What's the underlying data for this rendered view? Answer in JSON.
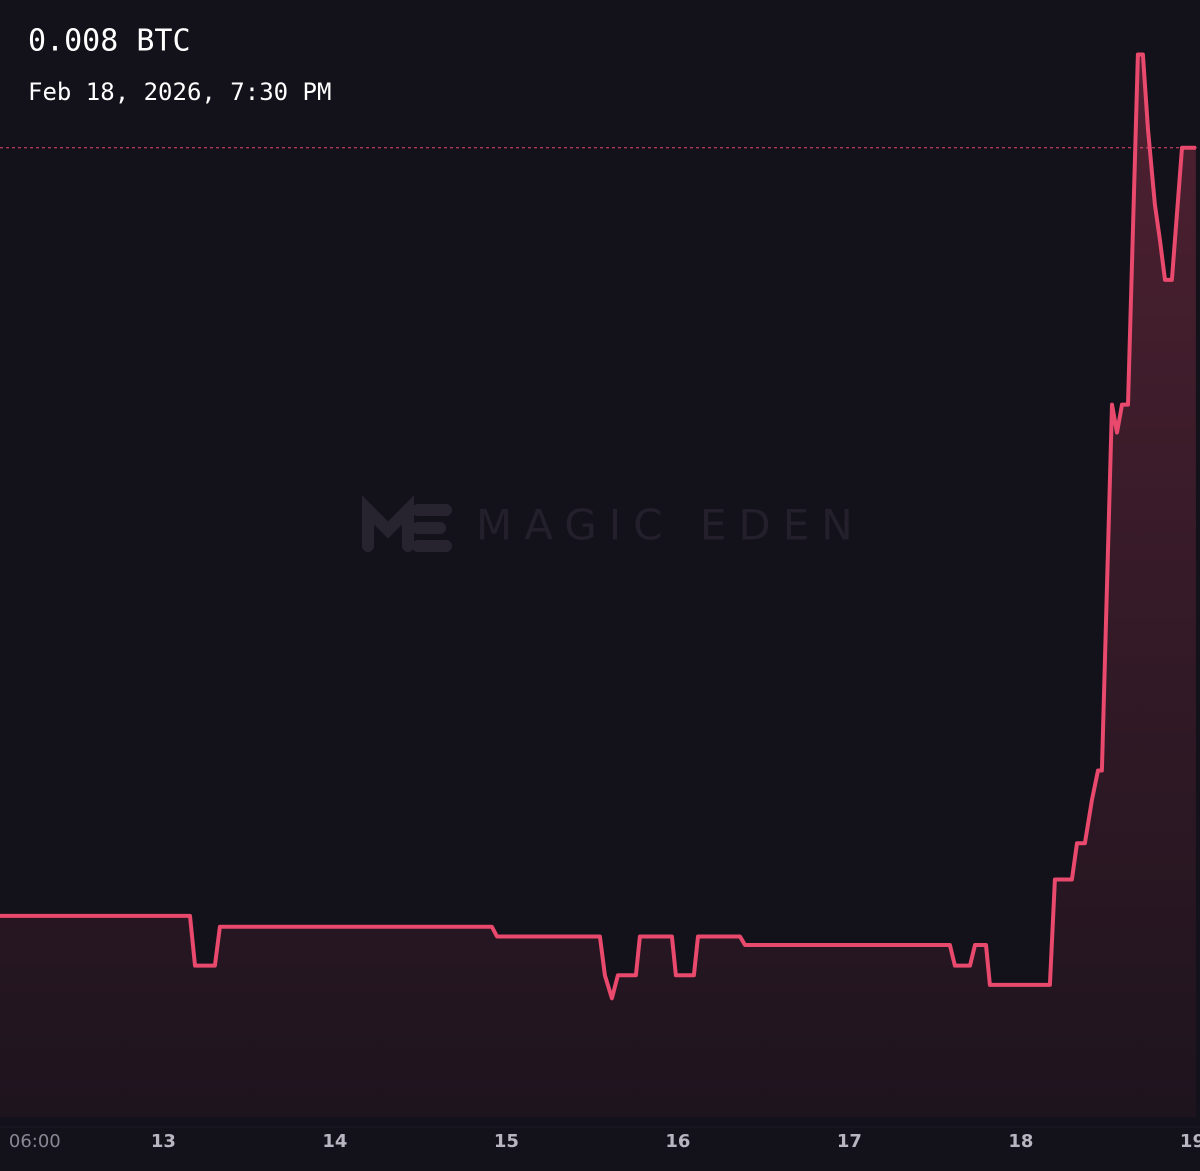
{
  "chart_data": {
    "type": "line",
    "price": "0.008 BTC",
    "timestamp": "Feb 18, 2026, 7:30 PM",
    "watermark": "MAGIC EDEN",
    "x": [
      12.047,
      13.155,
      13.184,
      13.3,
      13.329,
      14.915,
      14.945,
      15.545,
      15.574,
      15.615,
      15.65,
      15.755,
      15.778,
      15.965,
      15.988,
      16.093,
      16.117,
      16.362,
      16.391,
      17.586,
      17.615,
      17.703,
      17.732,
      17.796,
      17.819,
      18.169,
      18.198,
      18.297,
      18.327,
      18.373,
      18.414,
      18.449,
      18.472,
      18.531,
      18.56,
      18.589,
      18.624,
      18.682,
      18.711,
      18.741,
      18.781,
      18.81,
      18.84,
      18.88,
      18.939,
      19.02
    ],
    "series": [
      {
        "color": "#e8496c",
        "values": [
          0.00166,
          0.00166,
          0.00125,
          0.00125,
          0.00157,
          0.00157,
          0.00149,
          0.00149,
          0.00117,
          0.00098,
          0.00117,
          0.00117,
          0.00149,
          0.00149,
          0.00117,
          0.00117,
          0.00149,
          0.00149,
          0.00142,
          0.00142,
          0.00125,
          0.00125,
          0.00142,
          0.00142,
          0.00109,
          0.00109,
          0.00196,
          0.00196,
          0.00226,
          0.00226,
          0.00262,
          0.00286,
          0.00286,
          0.00588,
          0.00565,
          0.00588,
          0.00588,
          0.00877,
          0.00877,
          0.00815,
          0.00753,
          0.00724,
          0.00691,
          0.00691,
          0.008,
          0.008
        ]
      }
    ],
    "price_line": 0.008,
    "xlim": [
      12.047,
      19.044
    ],
    "ylim": [
      0,
      0.00922
    ],
    "xticks": [
      {
        "value": 12.25,
        "label": "06:00"
      },
      13,
      14,
      15,
      16,
      17,
      18,
      19
    ]
  }
}
